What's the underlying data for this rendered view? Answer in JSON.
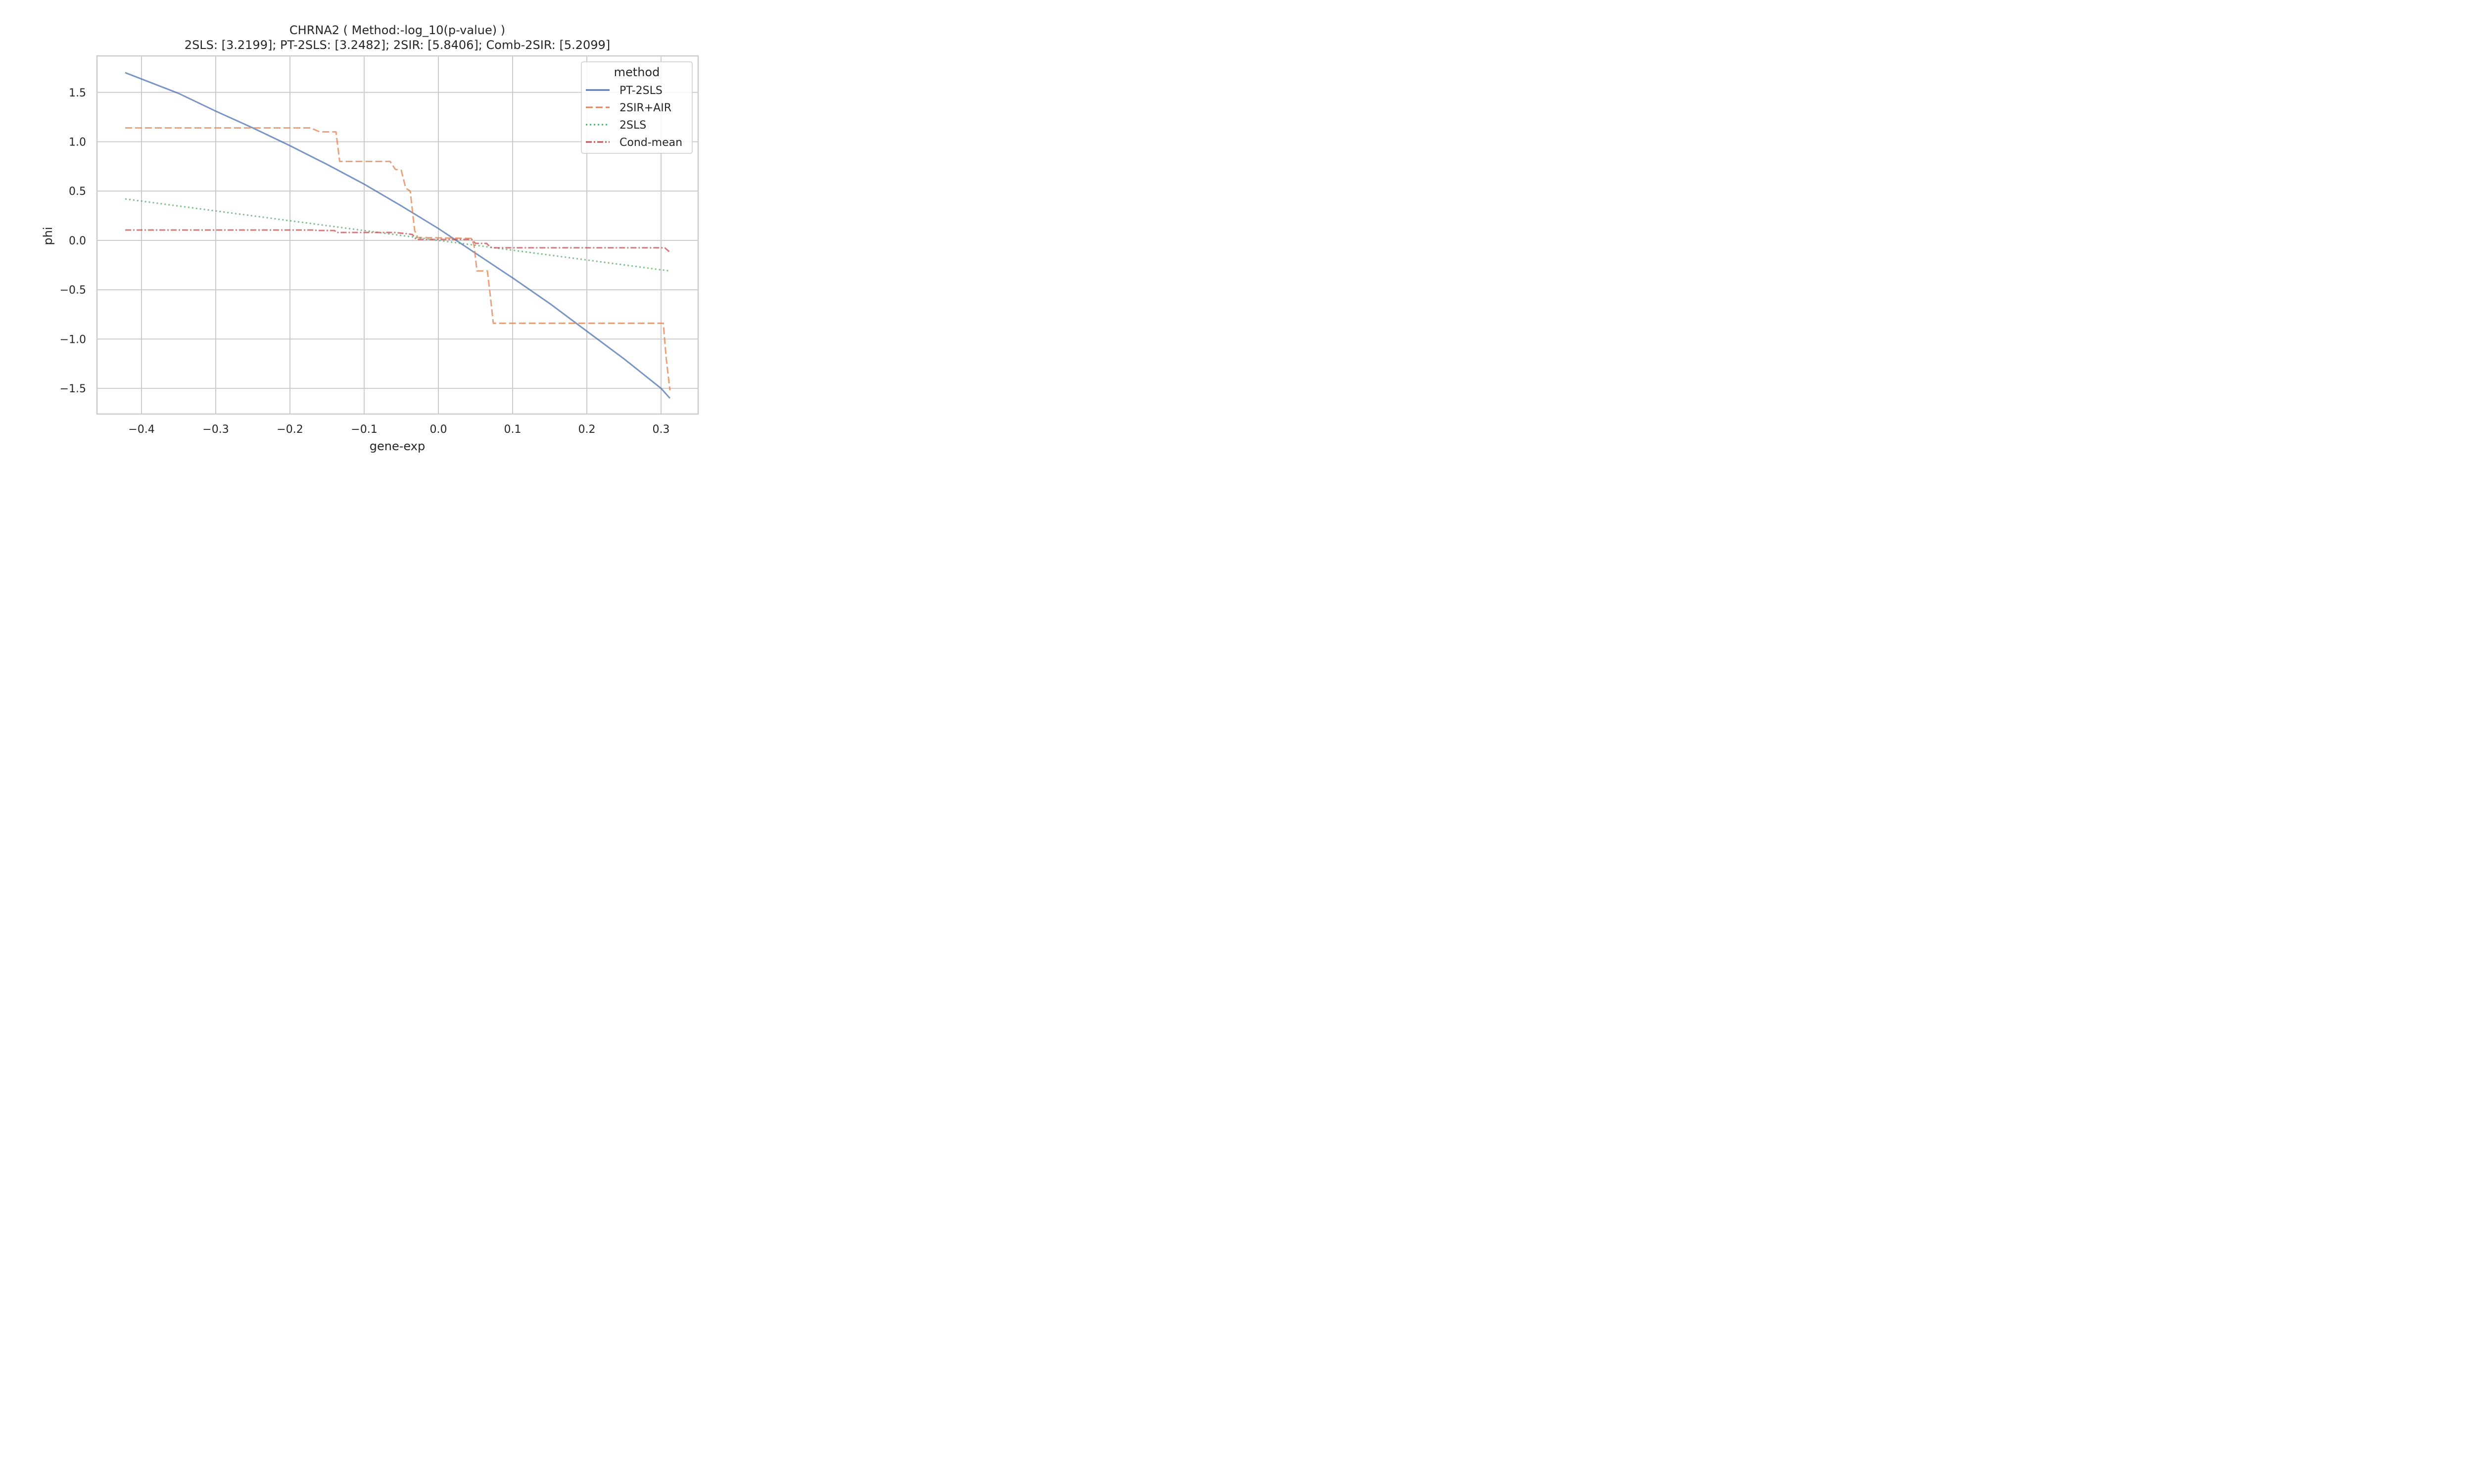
{
  "chart_data": {
    "type": "line",
    "title": "CHRNA2 ( Method:-log_10(p-value) )",
    "subtitle": "2SLS: [3.2199]; PT-2SLS: [3.2482]; 2SIR: [5.8406]; Comb-2SIR: [5.2099]",
    "xlabel": "gene-exp",
    "ylabel": "phi",
    "xlim": [
      -0.46,
      0.35
    ],
    "ylim": [
      -1.76,
      1.87
    ],
    "xticks": [
      -0.4,
      -0.3,
      -0.2,
      -0.1,
      0.0,
      0.1,
      0.2,
      0.3
    ],
    "xtick_labels": [
      "−0.4",
      "−0.3",
      "−0.2",
      "−0.1",
      "0.0",
      "0.1",
      "0.2",
      "0.3"
    ],
    "yticks": [
      1.5,
      1.0,
      0.5,
      0.0,
      -0.5,
      -1.0,
      -1.5
    ],
    "ytick_labels": [
      "1.5",
      "1.0",
      "0.5",
      "0.0",
      "−0.5",
      "−1.0",
      "−1.5"
    ],
    "grid": true,
    "legend": {
      "title": "method",
      "placement": "top-right"
    },
    "series": [
      {
        "name": "PT-2SLS",
        "color": "#4c72b0",
        "dash": "solid",
        "x": [
          -0.422,
          -0.35,
          -0.3,
          -0.25,
          -0.2,
          -0.15,
          -0.1,
          -0.05,
          0.0,
          0.05,
          0.1,
          0.15,
          0.2,
          0.25,
          0.3,
          0.312
        ],
        "y": [
          1.7,
          1.49,
          1.31,
          1.14,
          0.96,
          0.77,
          0.57,
          0.35,
          0.12,
          -0.13,
          -0.38,
          -0.64,
          -0.92,
          -1.2,
          -1.5,
          -1.6
        ]
      },
      {
        "name": "2SIR+AIR",
        "color": "#dd8452",
        "dash": "dashed",
        "x": [
          -0.422,
          -0.172,
          -0.16,
          -0.146,
          -0.138,
          -0.133,
          -0.065,
          -0.058,
          -0.05,
          -0.044,
          -0.038,
          -0.032,
          -0.028,
          0.045,
          0.048,
          0.052,
          0.066,
          0.069,
          0.074,
          0.303,
          0.307,
          0.312
        ],
        "y": [
          1.14,
          1.14,
          1.1,
          1.1,
          1.1,
          0.8,
          0.8,
          0.72,
          0.71,
          0.53,
          0.5,
          0.1,
          0.03,
          0.02,
          -0.05,
          -0.31,
          -0.31,
          -0.5,
          -0.84,
          -0.84,
          -1.2,
          -1.52
        ]
      },
      {
        "name": "2SLS",
        "color": "#55a868",
        "dash": "dotted",
        "x": [
          -0.422,
          0.312
        ],
        "y": [
          0.42,
          -0.31
        ]
      },
      {
        "name": "Cond-mean",
        "color": "#c44e52",
        "dash": "dashdot",
        "x": [
          -0.422,
          -0.17,
          -0.16,
          -0.14,
          -0.137,
          -0.06,
          -0.045,
          -0.035,
          -0.03,
          0.045,
          0.05,
          0.065,
          0.07,
          0.075,
          0.305,
          0.312
        ],
        "y": [
          0.105,
          0.105,
          0.1,
          0.1,
          0.08,
          0.08,
          0.07,
          0.06,
          0.01,
          0.01,
          -0.03,
          -0.03,
          -0.07,
          -0.075,
          -0.075,
          -0.12
        ]
      }
    ]
  }
}
